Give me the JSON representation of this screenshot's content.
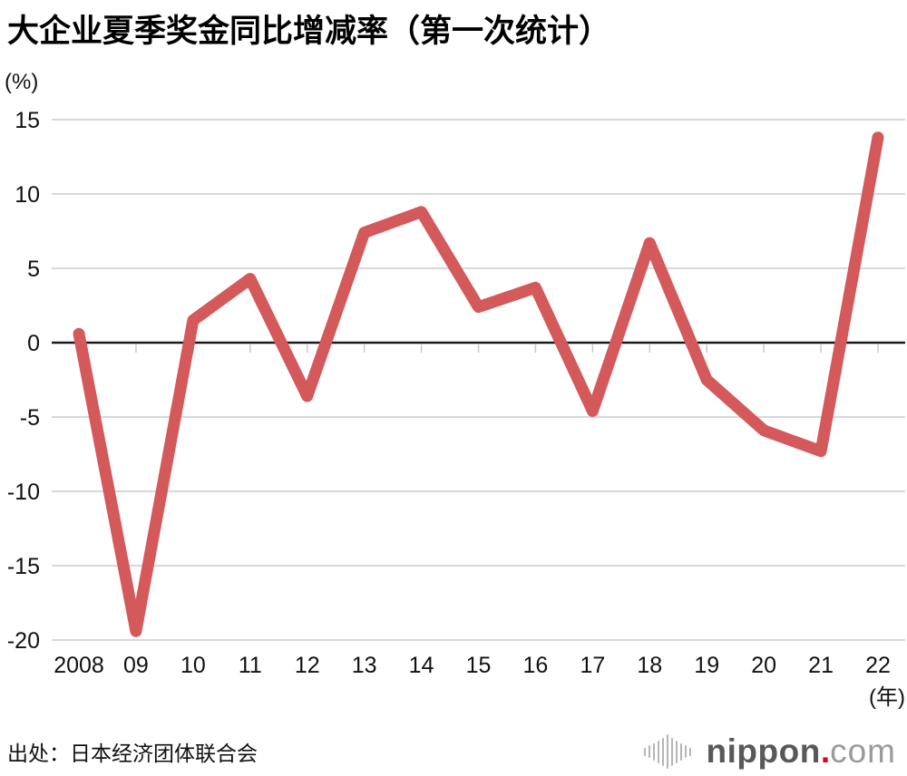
{
  "title": "大企业夏季奖金同比增减率（第一次统计）",
  "unit_label": "(%)",
  "x_unit_label": "(年)",
  "source": "出处：日本经济团体联合会",
  "logo": {
    "icon": "soundwave-bars-icon",
    "name": "nippon",
    "dot": ".",
    "tld": "com"
  },
  "colors": {
    "line": "#d4595b",
    "grid": "#d8d8d8",
    "zero_line": "#1a1a1a",
    "axis_tick": "#c9c9c9",
    "text": "#111111",
    "logo_gray": "#595959",
    "logo_light_gray": "#9a9a9a",
    "logo_dot_red": "#e60012"
  },
  "chart_data": {
    "type": "line",
    "title": "大企业夏季奖金同比增减率（第一次统计）",
    "ylabel": "(%)",
    "xlabel": "(年)",
    "categories": [
      "2008",
      "09",
      "10",
      "11",
      "12",
      "13",
      "14",
      "15",
      "16",
      "17",
      "18",
      "19",
      "20",
      "21",
      "22"
    ],
    "values": [
      0.6,
      -19.4,
      1.5,
      4.3,
      -3.6,
      7.4,
      8.8,
      2.4,
      3.7,
      -4.6,
      6.7,
      -2.5,
      -5.9,
      -7.3,
      13.8
    ],
    "series_name": "夏季奖金同比增减率",
    "ylim": [
      -20,
      15
    ],
    "yticks": [
      15,
      10,
      5,
      0,
      -5,
      -10,
      -15,
      -20
    ],
    "grid": true,
    "legend": false
  }
}
